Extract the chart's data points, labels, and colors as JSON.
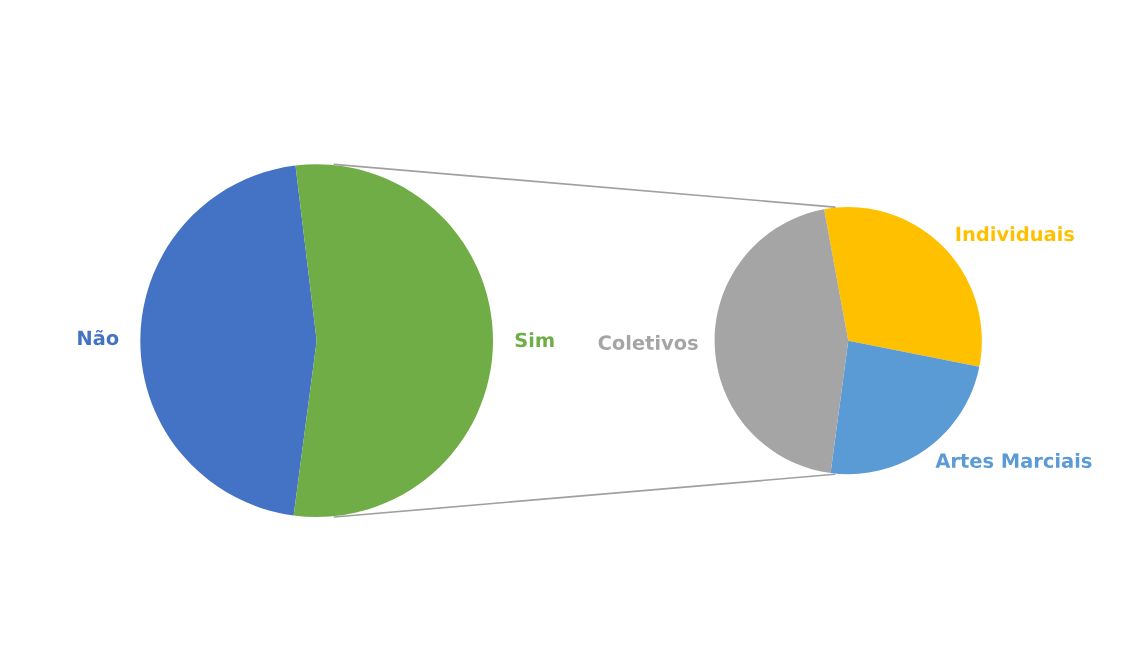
{
  "chart_data": [
    {
      "type": "pie",
      "categories": [
        "Não",
        "Sim"
      ],
      "values": [
        46,
        54
      ],
      "colors": [
        "#4472c4",
        "#70ad47"
      ]
    },
    {
      "type": "pie",
      "categories": [
        "Individuais",
        "Artes Marciais",
        "Coletivos"
      ],
      "values": [
        31,
        24,
        45
      ],
      "colors": [
        "#ffc000",
        "#5b9bd5",
        "#a5a5a5"
      ]
    }
  ]
}
